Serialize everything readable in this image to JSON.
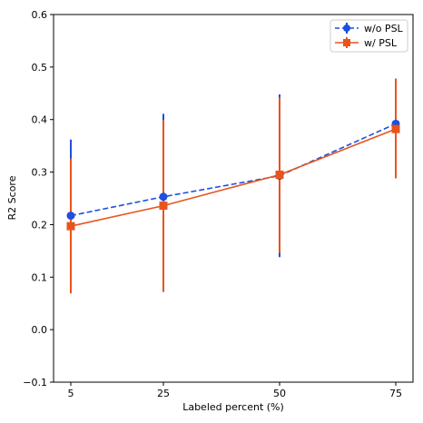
{
  "chart_data": {
    "type": "line",
    "x": [
      5,
      25,
      50,
      75
    ],
    "xticks": [
      "5",
      "25",
      "50",
      "75"
    ],
    "yticks": [
      "−0.1",
      "0.0",
      "0.1",
      "0.2",
      "0.3",
      "0.4",
      "0.5",
      "0.6"
    ],
    "xlabel": "Labeled percent (%)",
    "ylabel": "R2 Score",
    "ylim": [
      -0.1,
      0.6
    ],
    "grid": false,
    "legend_position": "top-right",
    "series": [
      {
        "name": "w/o PSL",
        "color": "#1f4fe0",
        "line_style": "dashed",
        "marker": "circle",
        "values": [
          0.217,
          0.253,
          0.293,
          0.392
        ],
        "error_low": [
          0.072,
          0.072,
          0.138,
          0.288
        ],
        "error_high": [
          0.362,
          0.411,
          0.448,
          0.478
        ]
      },
      {
        "name": "w/ PSL",
        "color": "#e8541e",
        "line_style": "solid",
        "marker": "square",
        "values": [
          0.197,
          0.236,
          0.295,
          0.382
        ],
        "error_low": [
          0.069,
          0.073,
          0.146,
          0.288
        ],
        "error_high": [
          0.326,
          0.399,
          0.442,
          0.478
        ]
      }
    ]
  }
}
